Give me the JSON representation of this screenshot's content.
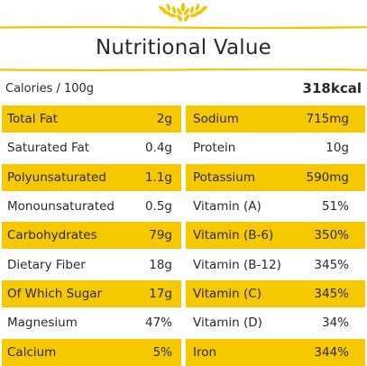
{
  "title": "Nutritional Value",
  "colors": {
    "accent_yellow": "#f6c800",
    "line_yellow": "#f3c400",
    "text": "#2a2a2a"
  },
  "calories": {
    "label": "Calories / 100g",
    "value": "318kcal"
  },
  "left_rows": [
    {
      "name": "Total Fat",
      "value": "2g"
    },
    {
      "name": "Saturated Fat",
      "value": "0.4g"
    },
    {
      "name": "Polyunsaturated",
      "value": "1.1g"
    },
    {
      "name": "Monounsaturated",
      "value": "0.5g"
    },
    {
      "name": "Carbohydrates",
      "value": "79g"
    },
    {
      "name": "Dietary Fiber",
      "value": "18g"
    },
    {
      "name": "Of Which Sugar",
      "value": "17g"
    },
    {
      "name": "Magnesium",
      "value": "47%"
    },
    {
      "name": "Calcium",
      "value": "5%"
    }
  ],
  "right_rows": [
    {
      "name": "Sodium",
      "value": "715mg"
    },
    {
      "name": "Protein",
      "value": "10g"
    },
    {
      "name": "Potassium",
      "value": "590mg"
    },
    {
      "name": "Vitamin (A)",
      "value": "51%"
    },
    {
      "name": "Vitamin (B-6)",
      "value": "350%"
    },
    {
      "name": "Vitamin (B-12)",
      "value": "345%"
    },
    {
      "name": "Vitamin (C)",
      "value": "345%"
    },
    {
      "name": "Vitamin (D)",
      "value": "34%"
    },
    {
      "name": "Iron",
      "value": "344%"
    }
  ],
  "icons": {
    "header_icon": "wheat-icon"
  }
}
